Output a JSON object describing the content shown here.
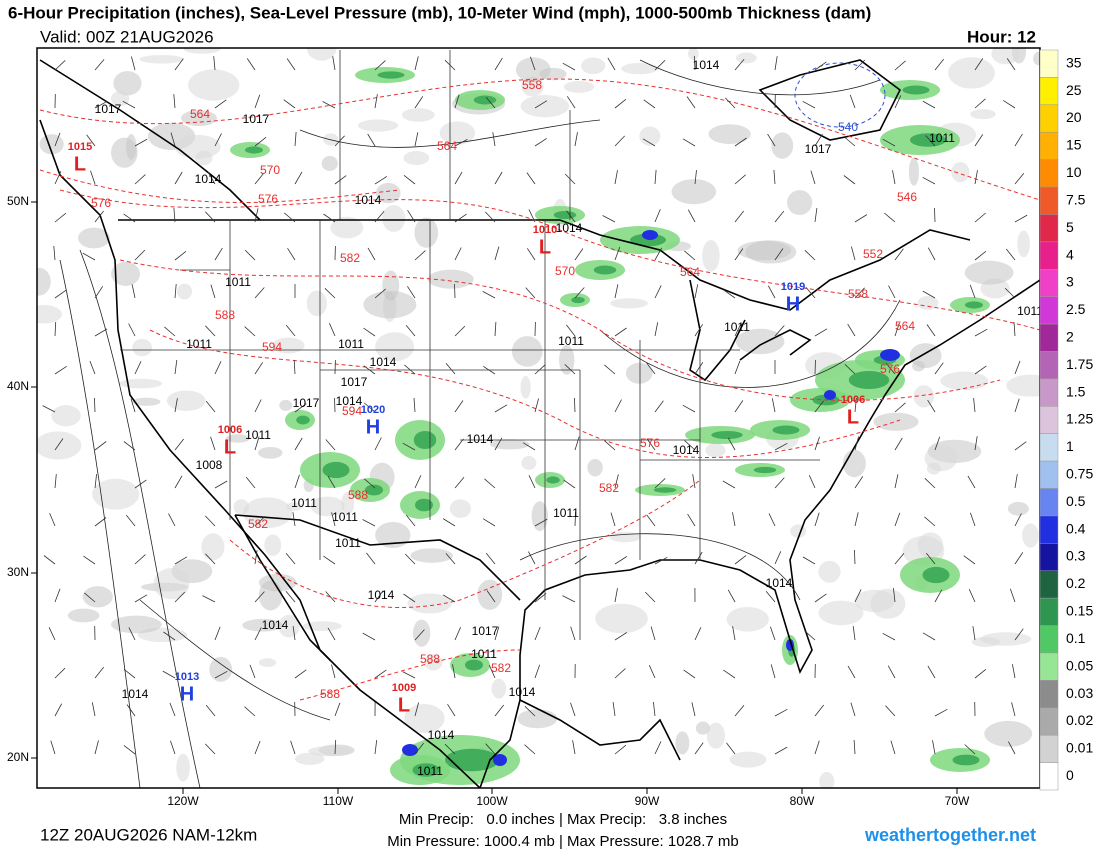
{
  "header": {
    "title": "6-Hour Precipitation (inches), Sea-Level Pressure (mb), 10-Meter Wind (mph), 1000-500mb Thickness (dam)",
    "valid": "Valid: 00Z 21AUG2026",
    "hour": "Hour: 12"
  },
  "footer": {
    "run": "12Z 20AUG2026 NAM-12km",
    "precip": "Min Precip:   0.0 inches | Max Precip:   3.8 inches",
    "pressure": "Min Pressure: 1000.4 mb | Max Pressure: 1028.7 mb",
    "site": "weathertogether.net"
  },
  "axes": {
    "lon": [
      "120W",
      "110W",
      "100W",
      "90W",
      "80W",
      "70W"
    ],
    "lat": [
      "50N",
      "40N",
      "30N",
      "20N"
    ]
  },
  "colorbar": {
    "labels": [
      "35",
      "25",
      "20",
      "15",
      "10",
      "7.5",
      "5",
      "4",
      "3",
      "2.5",
      "2",
      "1.75",
      "1.5",
      "1.25",
      "1",
      "0.75",
      "0.5",
      "0.4",
      "0.3",
      "0.2",
      "0.15",
      "0.1",
      "0.05",
      "0.03",
      "0.02",
      "0.01",
      "0"
    ],
    "colors": [
      "#ffffc8",
      "#fff000",
      "#ffd000",
      "#ffb000",
      "#ff8c00",
      "#f05a28",
      "#e0284a",
      "#e8208c",
      "#f040c8",
      "#d038d8",
      "#a02898",
      "#b464b4",
      "#c898c8",
      "#dcc4dc",
      "#c8dcf0",
      "#a0c0f0",
      "#6884f0",
      "#2030e0",
      "#1414a0",
      "#1e6440",
      "#2e9650",
      "#50c864",
      "#96e696",
      "#8c8c8c",
      "#aaaaaa",
      "#d2d2d2",
      "#ffffff"
    ]
  },
  "pressure_centers": [
    {
      "kind": "L",
      "value": "1015"
    },
    {
      "kind": "L",
      "value": "1010"
    },
    {
      "kind": "H",
      "value": "1019"
    },
    {
      "kind": "L",
      "value": "1006"
    },
    {
      "kind": "H",
      "value": "1020"
    },
    {
      "kind": "L",
      "value": "1006"
    },
    {
      "kind": "H",
      "value": "1013"
    },
    {
      "kind": "L",
      "value": "1009"
    }
  ],
  "isobar_labels": [
    "1014",
    "1017",
    "1017",
    "1014",
    "1014",
    "1017",
    "1011",
    "1011",
    "1014",
    "1011",
    "1011",
    "1014",
    "1017",
    "1017",
    "1014",
    "1011",
    "1011",
    "1011",
    "1011",
    "1014",
    "1008",
    "1011",
    "1011",
    "1014",
    "1011",
    "1011",
    "1014",
    "1014",
    "1014",
    "1017",
    "1011",
    "1014",
    "1014",
    "1014",
    "1011"
  ],
  "thickness_labels": [
    "558",
    "564",
    "564",
    "570",
    "576",
    "576",
    "570",
    "582",
    "588",
    "594",
    "594",
    "564",
    "546",
    "552",
    "558",
    "564",
    "576",
    "576",
    "582",
    "588",
    "582",
    "582",
    "588",
    "588",
    "540"
  ]
}
